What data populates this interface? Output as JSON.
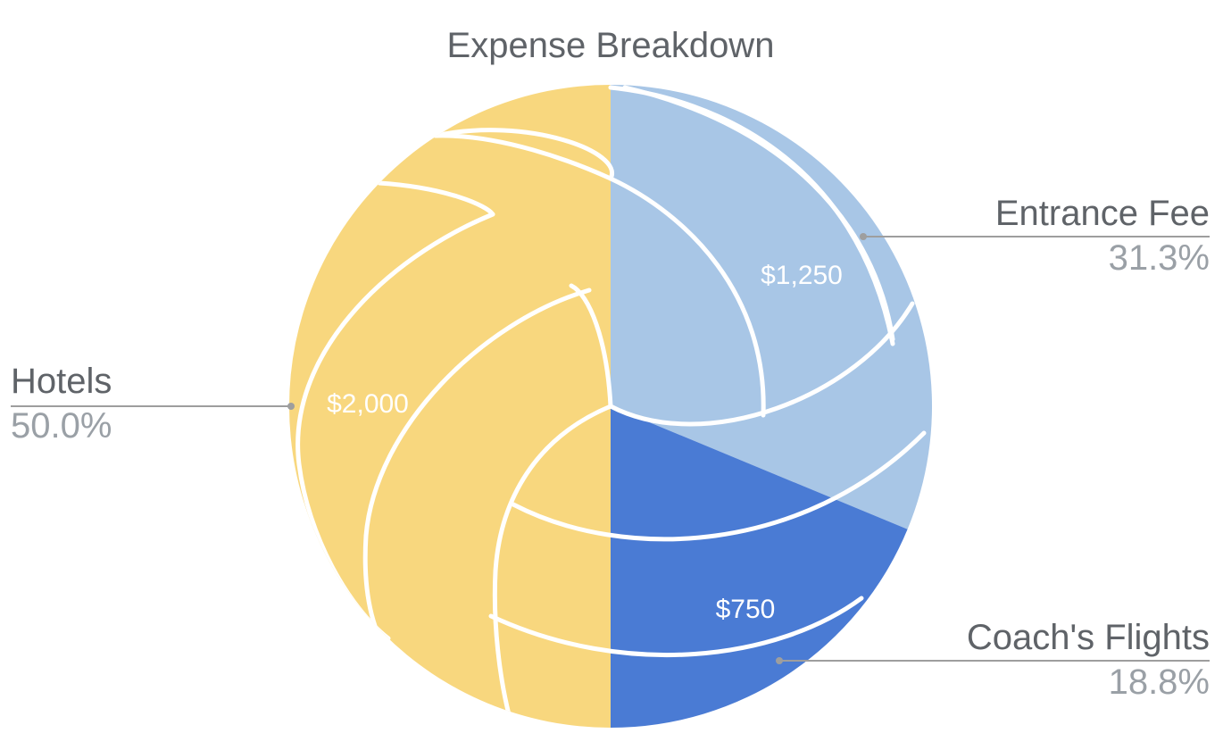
{
  "chart_data": {
    "type": "pie",
    "title": "Expense Breakdown",
    "slices": [
      {
        "name": "Entrance Fee",
        "value": 1250,
        "value_label": "$1,250",
        "percent_label": "31.3%",
        "color": "#a8c6e6"
      },
      {
        "name": "Coach's Flights",
        "value": 750,
        "value_label": "$750",
        "percent_label": "18.8%",
        "color": "#4a7bd4"
      },
      {
        "name": "Hotels",
        "value": 2000,
        "value_label": "$2,000",
        "percent_label": "50.0%",
        "color": "#f8d77e"
      }
    ],
    "start_angle_deg": 0,
    "direction": "clockwise",
    "labels_outside": true,
    "legend": "none"
  },
  "colors": {
    "leader_line": "#9e9e9e",
    "seam": "#ffffff"
  }
}
